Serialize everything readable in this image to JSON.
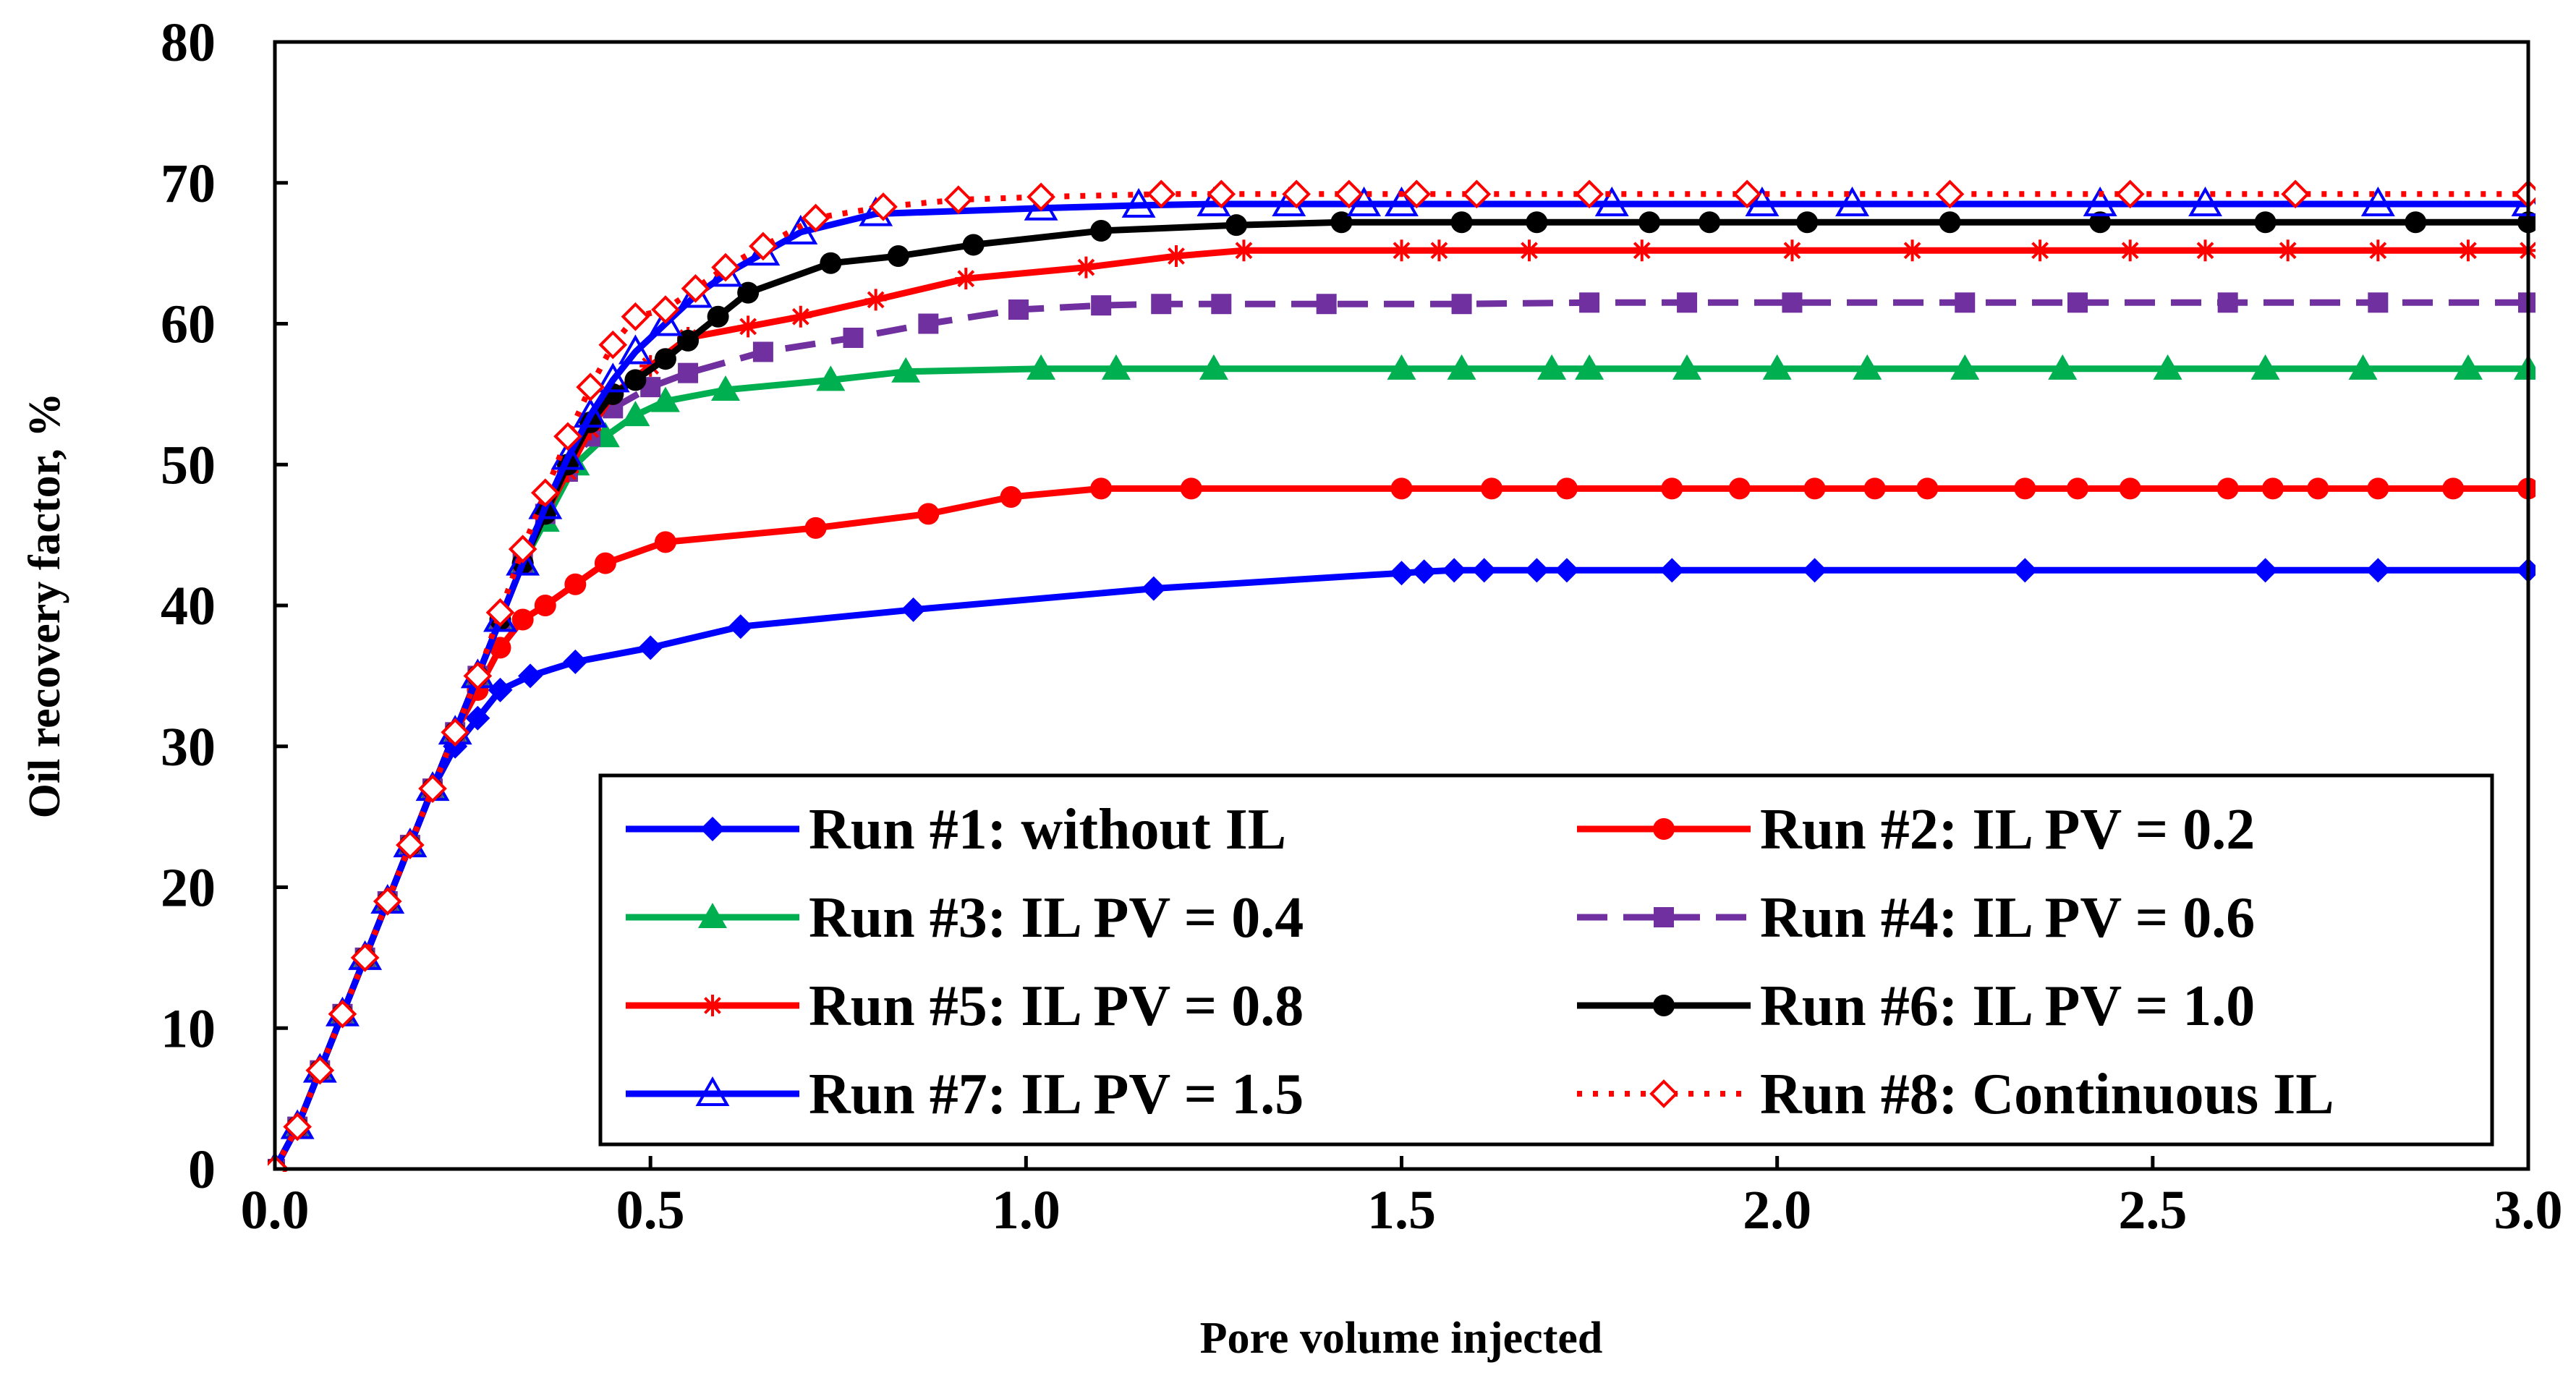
{
  "chart_data": {
    "type": "line",
    "title": "",
    "xlabel": "Pore volume injected",
    "ylabel": "Oil recovery factor, %",
    "xlim": [
      0,
      3
    ],
    "ylim": [
      0,
      80
    ],
    "x_ticks": [
      0,
      0.5,
      1,
      1.5,
      2,
      2.5,
      3
    ],
    "x_tick_labels": [
      "0.0",
      "0.5",
      "1.0",
      "1.5",
      "2.0",
      "2.5",
      "3.0"
    ],
    "y_ticks": [
      0,
      10,
      20,
      30,
      40,
      50,
      60,
      70,
      80
    ],
    "y_tick_labels": [
      "0",
      "10",
      "20",
      "30",
      "40",
      "50",
      "60",
      "70",
      "80"
    ],
    "grid": false,
    "legend_position": "bottom-right",
    "series": [
      {
        "name": "Run #1: without IL",
        "color": "#0000ff",
        "dash": "solid",
        "marker": "diamond-filled",
        "points": [
          [
            0,
            0
          ],
          [
            0.03,
            3
          ],
          [
            0.06,
            7
          ],
          [
            0.09,
            11
          ],
          [
            0.12,
            15
          ],
          [
            0.15,
            19
          ],
          [
            0.18,
            23
          ],
          [
            0.21,
            27
          ],
          [
            0.24,
            30
          ],
          [
            0.27,
            32
          ],
          [
            0.3,
            34
          ],
          [
            0.34,
            35
          ],
          [
            0.4,
            36
          ],
          [
            0.5,
            37
          ],
          [
            0.62,
            38.5
          ],
          [
            0.85,
            39.7
          ],
          [
            1.17,
            41.2
          ],
          [
            1.5,
            42.3
          ],
          [
            1.53,
            42.4
          ],
          [
            1.57,
            42.5
          ],
          [
            1.61,
            42.5
          ],
          [
            1.68,
            42.5
          ],
          [
            1.72,
            42.5
          ],
          [
            1.86,
            42.5
          ],
          [
            2.05,
            42.5
          ],
          [
            2.33,
            42.5
          ],
          [
            2.65,
            42.5
          ],
          [
            2.8,
            42.5
          ],
          [
            3,
            42.5
          ]
        ]
      },
      {
        "name": "Run #2: IL PV = 0.2",
        "color": "#ff0000",
        "dash": "solid",
        "marker": "circle-filled",
        "points": [
          [
            0,
            0
          ],
          [
            0.03,
            3
          ],
          [
            0.06,
            7
          ],
          [
            0.09,
            11
          ],
          [
            0.12,
            15
          ],
          [
            0.15,
            19
          ],
          [
            0.18,
            23
          ],
          [
            0.21,
            27
          ],
          [
            0.24,
            31
          ],
          [
            0.27,
            34
          ],
          [
            0.3,
            37
          ],
          [
            0.33,
            39
          ],
          [
            0.36,
            40
          ],
          [
            0.4,
            41.5
          ],
          [
            0.44,
            43
          ],
          [
            0.52,
            44.5
          ],
          [
            0.72,
            45.5
          ],
          [
            0.87,
            46.5
          ],
          [
            0.98,
            47.7
          ],
          [
            1.1,
            48.3
          ],
          [
            1.22,
            48.3
          ],
          [
            1.5,
            48.3
          ],
          [
            1.62,
            48.3
          ],
          [
            1.72,
            48.3
          ],
          [
            1.86,
            48.3
          ],
          [
            1.95,
            48.3
          ],
          [
            2.05,
            48.3
          ],
          [
            2.13,
            48.3
          ],
          [
            2.2,
            48.3
          ],
          [
            2.33,
            48.3
          ],
          [
            2.4,
            48.3
          ],
          [
            2.47,
            48.3
          ],
          [
            2.6,
            48.3
          ],
          [
            2.66,
            48.3
          ],
          [
            2.72,
            48.3
          ],
          [
            2.8,
            48.3
          ],
          [
            2.9,
            48.3
          ],
          [
            3,
            48.3
          ]
        ]
      },
      {
        "name": "Run #3: IL PV = 0.4",
        "color": "#00b050",
        "dash": "solid",
        "marker": "triangle-filled",
        "points": [
          [
            0,
            0
          ],
          [
            0.03,
            3
          ],
          [
            0.06,
            7
          ],
          [
            0.09,
            11
          ],
          [
            0.12,
            15
          ],
          [
            0.15,
            19
          ],
          [
            0.18,
            23
          ],
          [
            0.21,
            27
          ],
          [
            0.24,
            31
          ],
          [
            0.27,
            35
          ],
          [
            0.3,
            39
          ],
          [
            0.33,
            43
          ],
          [
            0.36,
            46
          ],
          [
            0.4,
            50
          ],
          [
            0.44,
            52
          ],
          [
            0.48,
            53.5
          ],
          [
            0.52,
            54.5
          ],
          [
            0.6,
            55.3
          ],
          [
            0.74,
            56
          ],
          [
            0.84,
            56.6
          ],
          [
            1.02,
            56.8
          ],
          [
            1.12,
            56.8
          ],
          [
            1.25,
            56.8
          ],
          [
            1.5,
            56.8
          ],
          [
            1.58,
            56.8
          ],
          [
            1.7,
            56.8
          ],
          [
            1.75,
            56.8
          ],
          [
            1.88,
            56.8
          ],
          [
            2.0,
            56.8
          ],
          [
            2.12,
            56.8
          ],
          [
            2.25,
            56.8
          ],
          [
            2.38,
            56.8
          ],
          [
            2.52,
            56.8
          ],
          [
            2.65,
            56.8
          ],
          [
            2.78,
            56.8
          ],
          [
            2.92,
            56.8
          ],
          [
            3,
            56.8
          ]
        ]
      },
      {
        "name": "Run #4: IL PV = 0.6",
        "color": "#7030a0",
        "dash": "dashed",
        "marker": "square-filled",
        "points": [
          [
            0,
            0
          ],
          [
            0.03,
            3
          ],
          [
            0.06,
            7
          ],
          [
            0.09,
            11
          ],
          [
            0.12,
            15
          ],
          [
            0.15,
            19
          ],
          [
            0.18,
            23
          ],
          [
            0.21,
            27
          ],
          [
            0.24,
            31
          ],
          [
            0.27,
            35
          ],
          [
            0.3,
            39
          ],
          [
            0.33,
            43
          ],
          [
            0.36,
            46.5
          ],
          [
            0.39,
            49.5
          ],
          [
            0.42,
            52
          ],
          [
            0.45,
            54
          ],
          [
            0.5,
            55.5
          ],
          [
            0.55,
            56.5
          ],
          [
            0.65,
            58
          ],
          [
            0.77,
            59
          ],
          [
            0.87,
            60
          ],
          [
            0.99,
            61
          ],
          [
            1.1,
            61.3
          ],
          [
            1.18,
            61.4
          ],
          [
            1.26,
            61.4
          ],
          [
            1.4,
            61.4
          ],
          [
            1.58,
            61.4
          ],
          [
            1.75,
            61.5
          ],
          [
            1.88,
            61.5
          ],
          [
            2.02,
            61.5
          ],
          [
            2.25,
            61.5
          ],
          [
            2.4,
            61.5
          ],
          [
            2.6,
            61.5
          ],
          [
            2.8,
            61.5
          ],
          [
            3,
            61.5
          ]
        ]
      },
      {
        "name": "Run #5: IL PV = 0.8",
        "color": "#ff0000",
        "dash": "solid",
        "marker": "asterisk",
        "points": [
          [
            0,
            0
          ],
          [
            0.03,
            3
          ],
          [
            0.06,
            7
          ],
          [
            0.09,
            11
          ],
          [
            0.12,
            15
          ],
          [
            0.15,
            19
          ],
          [
            0.18,
            23
          ],
          [
            0.21,
            27
          ],
          [
            0.24,
            31
          ],
          [
            0.27,
            35
          ],
          [
            0.3,
            39
          ],
          [
            0.33,
            43
          ],
          [
            0.36,
            46.5
          ],
          [
            0.39,
            49.5
          ],
          [
            0.42,
            52.5
          ],
          [
            0.45,
            55
          ],
          [
            0.5,
            57
          ],
          [
            0.55,
            59
          ],
          [
            0.63,
            59.8
          ],
          [
            0.7,
            60.5
          ],
          [
            0.8,
            61.7
          ],
          [
            0.92,
            63.2
          ],
          [
            1.08,
            64
          ],
          [
            1.2,
            64.8
          ],
          [
            1.29,
            65.2
          ],
          [
            1.5,
            65.2
          ],
          [
            1.55,
            65.2
          ],
          [
            1.67,
            65.2
          ],
          [
            1.82,
            65.2
          ],
          [
            2.02,
            65.2
          ],
          [
            2.18,
            65.2
          ],
          [
            2.35,
            65.2
          ],
          [
            2.47,
            65.2
          ],
          [
            2.57,
            65.2
          ],
          [
            2.68,
            65.2
          ],
          [
            2.8,
            65.2
          ],
          [
            2.92,
            65.2
          ],
          [
            3,
            65.2
          ]
        ]
      },
      {
        "name": "Run #6: IL PV = 1.0",
        "color": "#000000",
        "dash": "solid",
        "marker": "circle-filled",
        "points": [
          [
            0,
            0
          ],
          [
            0.03,
            3
          ],
          [
            0.06,
            7
          ],
          [
            0.09,
            11
          ],
          [
            0.12,
            15
          ],
          [
            0.15,
            19
          ],
          [
            0.18,
            23
          ],
          [
            0.21,
            27
          ],
          [
            0.24,
            31
          ],
          [
            0.27,
            35
          ],
          [
            0.3,
            39
          ],
          [
            0.33,
            43
          ],
          [
            0.36,
            46.5
          ],
          [
            0.39,
            50
          ],
          [
            0.42,
            53
          ],
          [
            0.45,
            55
          ],
          [
            0.48,
            56
          ],
          [
            0.52,
            57.5
          ],
          [
            0.55,
            58.8
          ],
          [
            0.59,
            60.5
          ],
          [
            0.63,
            62.2
          ],
          [
            0.74,
            64.3
          ],
          [
            0.83,
            64.8
          ],
          [
            0.93,
            65.6
          ],
          [
            1.1,
            66.6
          ],
          [
            1.28,
            67
          ],
          [
            1.42,
            67.2
          ],
          [
            1.58,
            67.2
          ],
          [
            1.68,
            67.2
          ],
          [
            1.83,
            67.2
          ],
          [
            1.91,
            67.2
          ],
          [
            2.04,
            67.2
          ],
          [
            2.23,
            67.2
          ],
          [
            2.43,
            67.2
          ],
          [
            2.65,
            67.2
          ],
          [
            2.85,
            67.2
          ],
          [
            3,
            67.2
          ]
        ]
      },
      {
        "name": "Run #7: IL PV = 1.5",
        "color": "#0000ff",
        "dash": "solid",
        "marker": "triangle-open",
        "points": [
          [
            0,
            0
          ],
          [
            0.03,
            3
          ],
          [
            0.06,
            7
          ],
          [
            0.09,
            11
          ],
          [
            0.12,
            15
          ],
          [
            0.15,
            19
          ],
          [
            0.18,
            23
          ],
          [
            0.21,
            27
          ],
          [
            0.24,
            31
          ],
          [
            0.27,
            35
          ],
          [
            0.3,
            39
          ],
          [
            0.33,
            43
          ],
          [
            0.36,
            47
          ],
          [
            0.39,
            50.5
          ],
          [
            0.42,
            53.5
          ],
          [
            0.45,
            56
          ],
          [
            0.48,
            58
          ],
          [
            0.52,
            60
          ],
          [
            0.56,
            62
          ],
          [
            0.6,
            63.5
          ],
          [
            0.65,
            65
          ],
          [
            0.7,
            66.5
          ],
          [
            0.8,
            67.8
          ],
          [
            1.02,
            68.2
          ],
          [
            1.15,
            68.4
          ],
          [
            1.25,
            68.5
          ],
          [
            1.35,
            68.5
          ],
          [
            1.45,
            68.5
          ],
          [
            1.5,
            68.5
          ],
          [
            1.78,
            68.5
          ],
          [
            1.98,
            68.5
          ],
          [
            2.1,
            68.5
          ],
          [
            2.43,
            68.5
          ],
          [
            2.57,
            68.5
          ],
          [
            2.8,
            68.5
          ],
          [
            3,
            68.5
          ]
        ]
      },
      {
        "name": "Run #8: Continuous IL",
        "color": "#ff0000",
        "dash": "dotted",
        "marker": "diamond-open",
        "points": [
          [
            0,
            0
          ],
          [
            0.03,
            3
          ],
          [
            0.06,
            7
          ],
          [
            0.09,
            11
          ],
          [
            0.12,
            15
          ],
          [
            0.15,
            19
          ],
          [
            0.18,
            23
          ],
          [
            0.21,
            27
          ],
          [
            0.24,
            31
          ],
          [
            0.27,
            35
          ],
          [
            0.3,
            39.5
          ],
          [
            0.33,
            44
          ],
          [
            0.36,
            48
          ],
          [
            0.39,
            52
          ],
          [
            0.42,
            55.5
          ],
          [
            0.45,
            58.5
          ],
          [
            0.48,
            60.5
          ],
          [
            0.52,
            61
          ],
          [
            0.56,
            62.5
          ],
          [
            0.6,
            64
          ],
          [
            0.65,
            65.5
          ],
          [
            0.72,
            67.5
          ],
          [
            0.81,
            68.3
          ],
          [
            0.91,
            68.8
          ],
          [
            1.02,
            69
          ],
          [
            1.18,
            69.2
          ],
          [
            1.26,
            69.2
          ],
          [
            1.36,
            69.2
          ],
          [
            1.43,
            69.2
          ],
          [
            1.52,
            69.2
          ],
          [
            1.6,
            69.2
          ],
          [
            1.75,
            69.2
          ],
          [
            1.96,
            69.2
          ],
          [
            2.23,
            69.2
          ],
          [
            2.47,
            69.2
          ],
          [
            2.69,
            69.2
          ],
          [
            3,
            69.2
          ]
        ]
      }
    ]
  }
}
